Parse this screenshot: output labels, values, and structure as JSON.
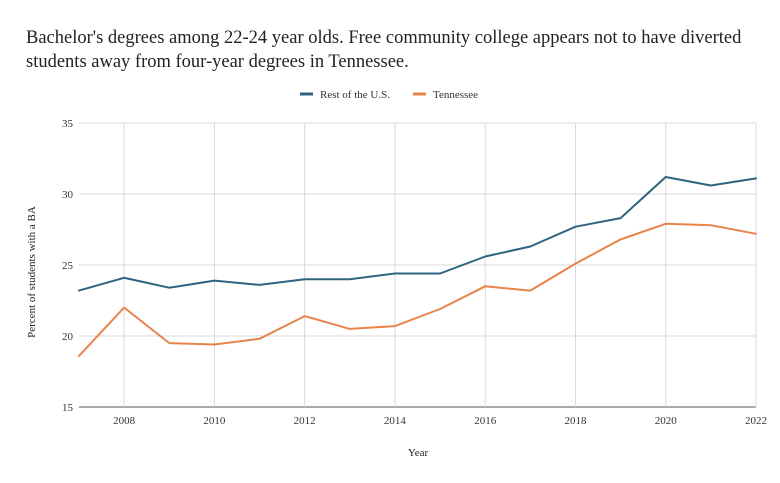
{
  "chart_data": {
    "type": "line",
    "title": "Bachelor's degrees among 22-24 year olds. Free community college appears not to have diverted students away from four-year degrees in Tennessee.",
    "xlabel": "Year",
    "ylabel": "Percent of students with a BA",
    "xlim": [
      2007,
      2022
    ],
    "ylim": [
      15,
      35
    ],
    "x_ticks": [
      "2008",
      "2010",
      "2012",
      "2014",
      "2016",
      "2018",
      "2020",
      "2022"
    ],
    "y_ticks": [
      "15",
      "20",
      "25",
      "30",
      "35"
    ],
    "grid": true,
    "legend_position": "top-center",
    "x": [
      2007,
      2008,
      2009,
      2010,
      2011,
      2012,
      2013,
      2014,
      2015,
      2016,
      2017,
      2018,
      2019,
      2020,
      2021,
      2022
    ],
    "series": [
      {
        "name": "Rest of the U.S.",
        "color": "#2e6480",
        "values": [
          23.2,
          24.1,
          23.4,
          23.9,
          23.6,
          24.0,
          24.0,
          24.4,
          24.4,
          25.6,
          26.3,
          27.7,
          28.3,
          31.2,
          30.6,
          31.1
        ]
      },
      {
        "name": "Tennessee",
        "color": "#e8834a",
        "values": [
          18.6,
          22.0,
          19.5,
          19.4,
          19.8,
          21.4,
          20.5,
          20.7,
          21.9,
          23.5,
          23.2,
          25.1,
          26.8,
          27.9,
          27.8,
          27.2
        ]
      }
    ]
  }
}
